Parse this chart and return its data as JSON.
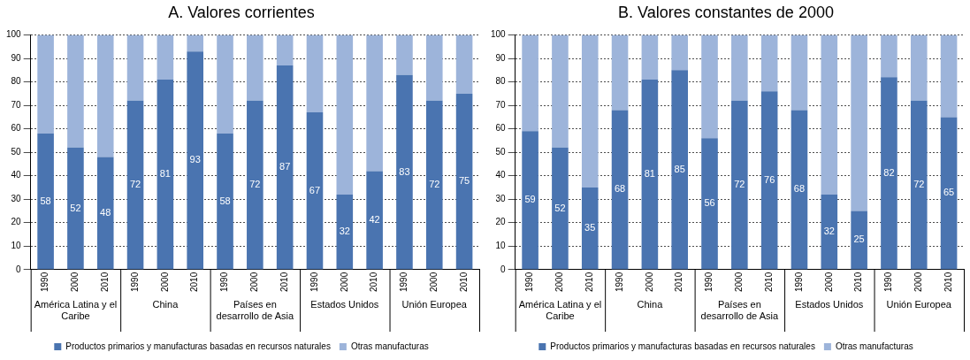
{
  "chart_data": [
    {
      "type": "bar",
      "title": "A. Valores corrientes",
      "stacked": true,
      "categories": [
        "1990",
        "2000",
        "2010",
        "1990",
        "2000",
        "2010",
        "1990",
        "2000",
        "2010",
        "1990",
        "2000",
        "2010",
        "1990",
        "2000",
        "2010"
      ],
      "annotations": [
        "América Latina y el Caribe",
        "China",
        "Países en desarrollo de Asia",
        "Estados Unidos",
        "Unión Europea"
      ],
      "series": [
        {
          "name": "Productos primarios y manufacturas basadas en recursos naturales",
          "color": "#4a74b0",
          "values": [
            58,
            52,
            48,
            72,
            81,
            93,
            58,
            72,
            87,
            67,
            32,
            42,
            83,
            72,
            75
          ],
          "value_labels": [
            "58",
            "52",
            "48",
            "72",
            "81",
            "93",
            "58",
            "72",
            "87",
            "67",
            "32",
            "42",
            "83",
            "72",
            "75"
          ]
        },
        {
          "name": "Otras manufacturas",
          "color": "#9db4da",
          "values": [
            42,
            48,
            52,
            28,
            19,
            7,
            42,
            28,
            13,
            33,
            68,
            58,
            17,
            28,
            25
          ]
        }
      ],
      "ylim": [
        0,
        100
      ],
      "yticks": [
        0,
        10,
        20,
        30,
        40,
        50,
        60,
        70,
        80,
        90,
        100
      ],
      "grid": "y",
      "legend": "bottom"
    },
    {
      "type": "bar",
      "title": "B. Valores constantes de 2000",
      "stacked": true,
      "categories": [
        "1990",
        "2000",
        "2010",
        "1990",
        "2000",
        "2010",
        "1990",
        "2000",
        "2010",
        "1990",
        "2000",
        "2010",
        "1990",
        "2000",
        "2010"
      ],
      "annotations": [
        "América Latina y el Caribe",
        "China",
        "Países en desarrollo de Asia",
        "Estados Unidos",
        "Unión Europea"
      ],
      "series": [
        {
          "name": "Productos primarios y manufacturas basadas en recursos naturales",
          "color": "#4a74b0",
          "values": [
            59,
            52,
            35,
            68,
            81,
            85,
            56,
            72,
            76,
            68,
            32,
            25,
            82,
            72,
            65
          ],
          "value_labels": [
            "59",
            "52",
            "35",
            "68",
            "81",
            "85",
            "56",
            "72",
            "76",
            "68",
            "32",
            "25",
            "82",
            "72",
            "65"
          ]
        },
        {
          "name": "Otras manufacturas",
          "color": "#9db4da",
          "values": [
            41,
            48,
            65,
            32,
            19,
            15,
            44,
            28,
            24,
            32,
            68,
            75,
            18,
            28,
            35
          ]
        }
      ],
      "ylim": [
        0,
        100
      ],
      "yticks": [
        0,
        10,
        20,
        30,
        40,
        50,
        60,
        70,
        80,
        90,
        100
      ],
      "grid": "y",
      "legend": "bottom"
    }
  ]
}
